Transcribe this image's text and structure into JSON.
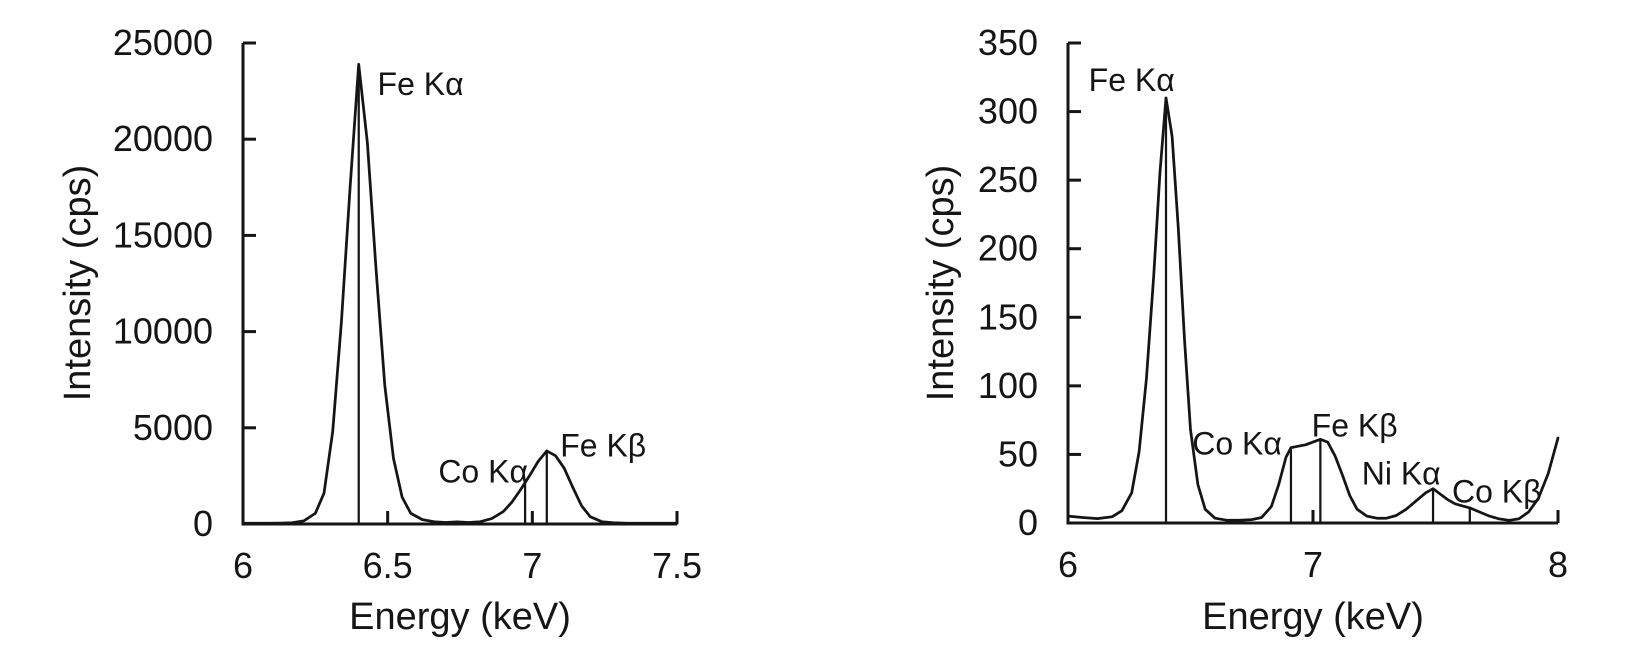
{
  "page": {
    "background": "#ffffff",
    "line_color": "#151515",
    "text_color": "#151515"
  },
  "chart_data": [
    {
      "type": "line",
      "panel": "left",
      "title": "",
      "xlabel": "Energy (keV)",
      "ylabel": "Intensity (cps)",
      "xlim": [
        6,
        7.5
      ],
      "ylim": [
        0,
        25000
      ],
      "grid": false,
      "legend": "none",
      "xticks": [
        {
          "v": 6.0,
          "label": "6"
        },
        {
          "v": 6.5,
          "label": "6.5"
        },
        {
          "v": 7.0,
          "label": "7"
        },
        {
          "v": 7.5,
          "label": "7.5"
        }
      ],
      "yticks": [
        {
          "v": 0,
          "label": "0"
        },
        {
          "v": 5000,
          "label": "5000"
        },
        {
          "v": 10000,
          "label": "10000"
        },
        {
          "v": 15000,
          "label": "15000"
        },
        {
          "v": 20000,
          "label": "20000"
        },
        {
          "v": 25000,
          "label": "25000"
        }
      ],
      "series": [
        {
          "name": "spectrum",
          "points": [
            [
              6.0,
              35
            ],
            [
              6.08,
              35
            ],
            [
              6.13,
              45
            ],
            [
              6.17,
              70
            ],
            [
              6.21,
              160
            ],
            [
              6.25,
              550
            ],
            [
              6.28,
              1600
            ],
            [
              6.31,
              4800
            ],
            [
              6.34,
              10500
            ],
            [
              6.37,
              17500
            ],
            [
              6.4,
              23900
            ],
            [
              6.43,
              19800
            ],
            [
              6.46,
              13200
            ],
            [
              6.49,
              7200
            ],
            [
              6.52,
              3400
            ],
            [
              6.55,
              1400
            ],
            [
              6.58,
              550
            ],
            [
              6.62,
              230
            ],
            [
              6.66,
              120
            ],
            [
              6.7,
              80
            ],
            [
              6.74,
              110
            ],
            [
              6.78,
              80
            ],
            [
              6.82,
              120
            ],
            [
              6.86,
              280
            ],
            [
              6.9,
              650
            ],
            [
              6.93,
              1150
            ],
            [
              6.96,
              1800
            ],
            [
              6.99,
              2500
            ],
            [
              7.02,
              3250
            ],
            [
              7.05,
              3800
            ],
            [
              7.08,
              3550
            ],
            [
              7.11,
              2900
            ],
            [
              7.14,
              1900
            ],
            [
              7.17,
              950
            ],
            [
              7.2,
              380
            ],
            [
              7.24,
              120
            ],
            [
              7.28,
              60
            ],
            [
              7.33,
              40
            ],
            [
              7.4,
              35
            ],
            [
              7.5,
              35
            ]
          ]
        }
      ],
      "peaks": [
        {
          "id": "fe-ka",
          "label": "Fe Kα",
          "marker_x": 6.4,
          "marker_y": 23900,
          "label_x": 6.465,
          "label_y": 22300,
          "anchor": "start"
        },
        {
          "id": "co-ka",
          "label": "Co Kα",
          "marker_x": 6.975,
          "marker_y": 2150,
          "label_x": 6.83,
          "label_y": 2150,
          "anchor": "middle"
        },
        {
          "id": "fe-kb",
          "label": "Fe Kβ",
          "marker_x": 7.05,
          "marker_y": 3800,
          "label_x": 7.245,
          "label_y": 3500,
          "anchor": "middle"
        }
      ]
    },
    {
      "type": "line",
      "panel": "right",
      "title": "",
      "xlabel": "Energy (keV)",
      "ylabel": "Intensity (cps)",
      "xlim": [
        6,
        8
      ],
      "ylim": [
        0,
        350
      ],
      "grid": false,
      "legend": "none",
      "xticks": [
        {
          "v": 6,
          "label": "6"
        },
        {
          "v": 7,
          "label": "7"
        },
        {
          "v": 8,
          "label": "8"
        }
      ],
      "yticks": [
        {
          "v": 0,
          "label": "0"
        },
        {
          "v": 50,
          "label": "50"
        },
        {
          "v": 100,
          "label": "100"
        },
        {
          "v": 150,
          "label": "150"
        },
        {
          "v": 200,
          "label": "200"
        },
        {
          "v": 250,
          "label": "250"
        },
        {
          "v": 300,
          "label": "300"
        },
        {
          "v": 350,
          "label": "350"
        }
      ],
      "series": [
        {
          "name": "spectrum",
          "points": [
            [
              6.0,
              5
            ],
            [
              6.06,
              4
            ],
            [
              6.12,
              3.2
            ],
            [
              6.18,
              4.5
            ],
            [
              6.22,
              9
            ],
            [
              6.26,
              22
            ],
            [
              6.29,
              52
            ],
            [
              6.32,
              105
            ],
            [
              6.35,
              180
            ],
            [
              6.375,
              255
            ],
            [
              6.4,
              310
            ],
            [
              6.425,
              282
            ],
            [
              6.45,
              215
            ],
            [
              6.475,
              135
            ],
            [
              6.5,
              68
            ],
            [
              6.53,
              28
            ],
            [
              6.56,
              10
            ],
            [
              6.6,
              3.5
            ],
            [
              6.65,
              2
            ],
            [
              6.7,
              2
            ],
            [
              6.75,
              2.5
            ],
            [
              6.79,
              4
            ],
            [
              6.83,
              12
            ],
            [
              6.86,
              28
            ],
            [
              6.89,
              48
            ],
            [
              6.91,
              55
            ],
            [
              6.94,
              56
            ],
            [
              6.97,
              57
            ],
            [
              7.0,
              59
            ],
            [
              7.03,
              61
            ],
            [
              7.06,
              59
            ],
            [
              7.09,
              49
            ],
            [
              7.12,
              35
            ],
            [
              7.15,
              20
            ],
            [
              7.18,
              10
            ],
            [
              7.22,
              5
            ],
            [
              7.26,
              3.5
            ],
            [
              7.3,
              3.5
            ],
            [
              7.34,
              5.5
            ],
            [
              7.38,
              10
            ],
            [
              7.42,
              16
            ],
            [
              7.46,
              22
            ],
            [
              7.49,
              25
            ],
            [
              7.52,
              21
            ],
            [
              7.55,
              17
            ],
            [
              7.58,
              14
            ],
            [
              7.61,
              12.5
            ],
            [
              7.64,
              11
            ],
            [
              7.68,
              8
            ],
            [
              7.72,
              5
            ],
            [
              7.76,
              3
            ],
            [
              7.8,
              2
            ],
            [
              7.84,
              3
            ],
            [
              7.88,
              8
            ],
            [
              7.92,
              18
            ],
            [
              7.96,
              36
            ],
            [
              8.0,
              62
            ]
          ]
        }
      ],
      "peaks": [
        {
          "id": "fe-ka",
          "label": "Fe Kα",
          "marker_x": 6.4,
          "marker_y": 310,
          "label_x": 6.26,
          "label_y": 315,
          "anchor": "middle"
        },
        {
          "id": "co-ka",
          "label": "Co Kα",
          "marker_x": 6.91,
          "marker_y": 55,
          "label_x": 6.69,
          "label_y": 50,
          "anchor": "middle"
        },
        {
          "id": "fe-kb",
          "label": "Fe Kβ",
          "marker_x": 7.03,
          "marker_y": 61,
          "label_x": 7.17,
          "label_y": 63,
          "anchor": "middle"
        },
        {
          "id": "ni-ka",
          "label": "Ni Kα",
          "marker_x": 7.49,
          "marker_y": 25,
          "label_x": 7.36,
          "label_y": 28,
          "anchor": "middle"
        },
        {
          "id": "co-kb",
          "label": "Co Kβ",
          "marker_x": 7.64,
          "marker_y": 11,
          "label_x": 7.75,
          "label_y": 15,
          "anchor": "middle"
        }
      ]
    }
  ]
}
